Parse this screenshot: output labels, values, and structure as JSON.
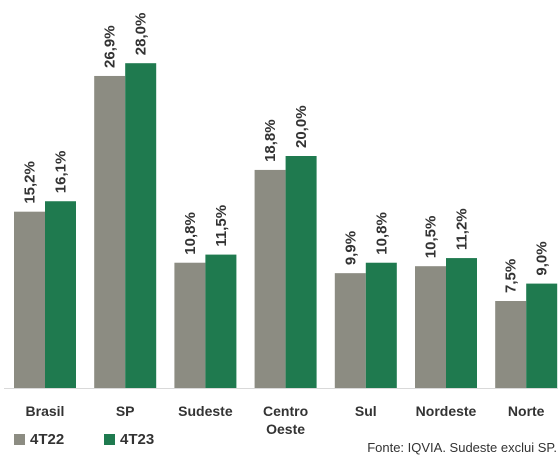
{
  "chart_data": {
    "type": "bar",
    "categories": [
      "Brasil",
      "SP",
      "Sudeste",
      "Centro Oeste",
      "Sul",
      "Nordeste",
      "Norte"
    ],
    "category_lines": [
      [
        "Brasil"
      ],
      [
        "SP"
      ],
      [
        "Sudeste"
      ],
      [
        "Centro",
        "Oeste"
      ],
      [
        "Sul"
      ],
      [
        "Nordeste"
      ],
      [
        "Norte"
      ]
    ],
    "series": [
      {
        "name": "4T22",
        "color": "#8c8c82",
        "values": [
          15.2,
          26.9,
          10.8,
          18.8,
          9.9,
          10.5,
          7.5
        ],
        "labels": [
          "15,2%",
          "26,9%",
          "10,8%",
          "18,8%",
          "9,9%",
          "10,5%",
          "7,5%"
        ]
      },
      {
        "name": "4T23",
        "color": "#1f7a4f",
        "values": [
          16.1,
          28.0,
          11.5,
          20.0,
          10.8,
          11.2,
          9.0
        ],
        "labels": [
          "16,1%",
          "28,0%",
          "11,5%",
          "20,0%",
          "10,8%",
          "11,2%",
          "9,0%"
        ]
      }
    ],
    "ylim": [
      0,
      30
    ],
    "grid": false,
    "legend": "bottom-left",
    "source": "Fonte: IQVIA. Sudeste exclui SP."
  }
}
